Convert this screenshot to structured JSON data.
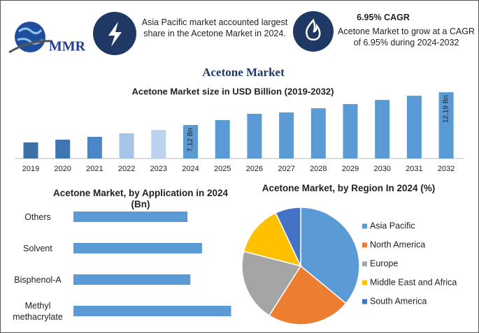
{
  "header": {
    "logo_text": "MMR",
    "info_text": "Asia Pacific market accounted largest share in the Acetone Market in 2024.",
    "cagr_title": "6.95% CAGR",
    "cagr_text": "Acetone Market to grow at a CAGR of 6.95% during 2024-2032"
  },
  "title": "Acetone Market",
  "chart_data": [
    {
      "type": "bar",
      "title": "Acetone Market size in USD Billion (2019-2032)",
      "categories": [
        "2019",
        "2020",
        "2021",
        "2022",
        "2023",
        "2024",
        "2025",
        "2026",
        "2027",
        "2028",
        "2029",
        "2030",
        "2031",
        "2032"
      ],
      "values": [
        4.42,
        4.85,
        5.29,
        5.83,
        6.36,
        7.12,
        7.88,
        8.85,
        9.06,
        9.71,
        10.36,
        11.0,
        11.65,
        12.19
      ],
      "value_labels": [
        null,
        null,
        null,
        null,
        null,
        "7.12 Bn",
        null,
        null,
        null,
        null,
        null,
        null,
        null,
        "12.19 Bn"
      ],
      "colors": [
        "#3e6ea6",
        "#3e75b3",
        "#4a86c8",
        "#a6c4e8",
        "#bcd3ef",
        "#5b9bd5",
        "#5b9bd5",
        "#5b9bd5",
        "#5b9bd5",
        "#5b9bd5",
        "#5b9bd5",
        "#5b9bd5",
        "#5b9bd5",
        "#5b9bd5"
      ],
      "ylim": [
        1.94,
        13.5
      ]
    },
    {
      "type": "hbar",
      "title": "Acetone Market, by Application in 2024 (Bn)",
      "categories": [
        "Others",
        "Solvent",
        "Bisphenol-A",
        "Methyl methacrylate"
      ],
      "values": [
        1.57,
        1.77,
        1.61,
        2.17
      ],
      "color": "#5b9bd5",
      "xlim": [
        0,
        2.3
      ]
    },
    {
      "type": "pie",
      "title": "Acetone Market, by Region In 2024 (%)",
      "categories": [
        "Asia Pacific",
        "North America",
        "Europe",
        "Middle East and Africa",
        "South America"
      ],
      "values": [
        36,
        23,
        20,
        14,
        7
      ],
      "colors": [
        "#5b9bd5",
        "#ed7d31",
        "#a5a5a5",
        "#ffc000",
        "#4472c4"
      ],
      "legend": "right"
    }
  ]
}
